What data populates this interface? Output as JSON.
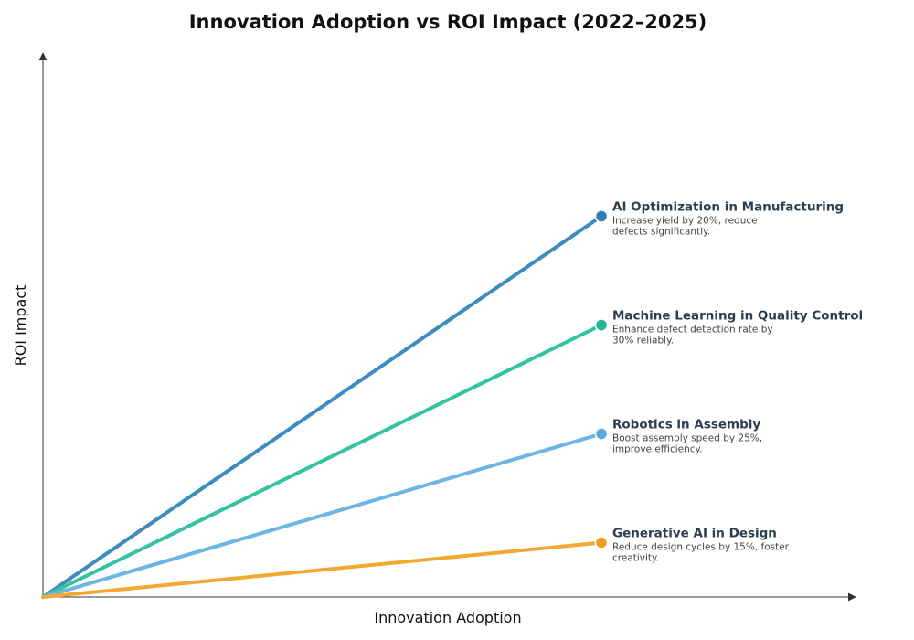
{
  "chart_data": {
    "type": "line",
    "title": "Innovation Adoption vs ROI Impact (2022–2025)",
    "xlabel": "Innovation Adoption",
    "ylabel": "ROI Impact",
    "grid": false,
    "legend": "none",
    "series": [
      {
        "name": "AI Optimization in Manufacturing",
        "description_lines": [
          "Increase yield by 20%, reduce",
          "defects significantly."
        ],
        "color": "#3d8bbf",
        "marker_color": "#2e7fb8",
        "end": 0.7
      },
      {
        "name": "Machine Learning in Quality Control",
        "description_lines": [
          "Enhance defect detection rate by",
          "30% reliably."
        ],
        "color": "#33c3a0",
        "marker_color": "#1fb894",
        "end": 0.5
      },
      {
        "name": "Robotics in Assembly",
        "description_lines": [
          "Boost assembly speed by 25%,",
          "improve efficiency."
        ],
        "color": "#6db5e2",
        "marker_color": "#5aabdc",
        "end": 0.3
      },
      {
        "name": "Generative AI in Design",
        "description_lines": [
          "Reduce design cycles by 15%, foster",
          "creativity."
        ],
        "color": "#f2a933",
        "marker_color": "#f0a020",
        "end": 0.1
      }
    ]
  }
}
